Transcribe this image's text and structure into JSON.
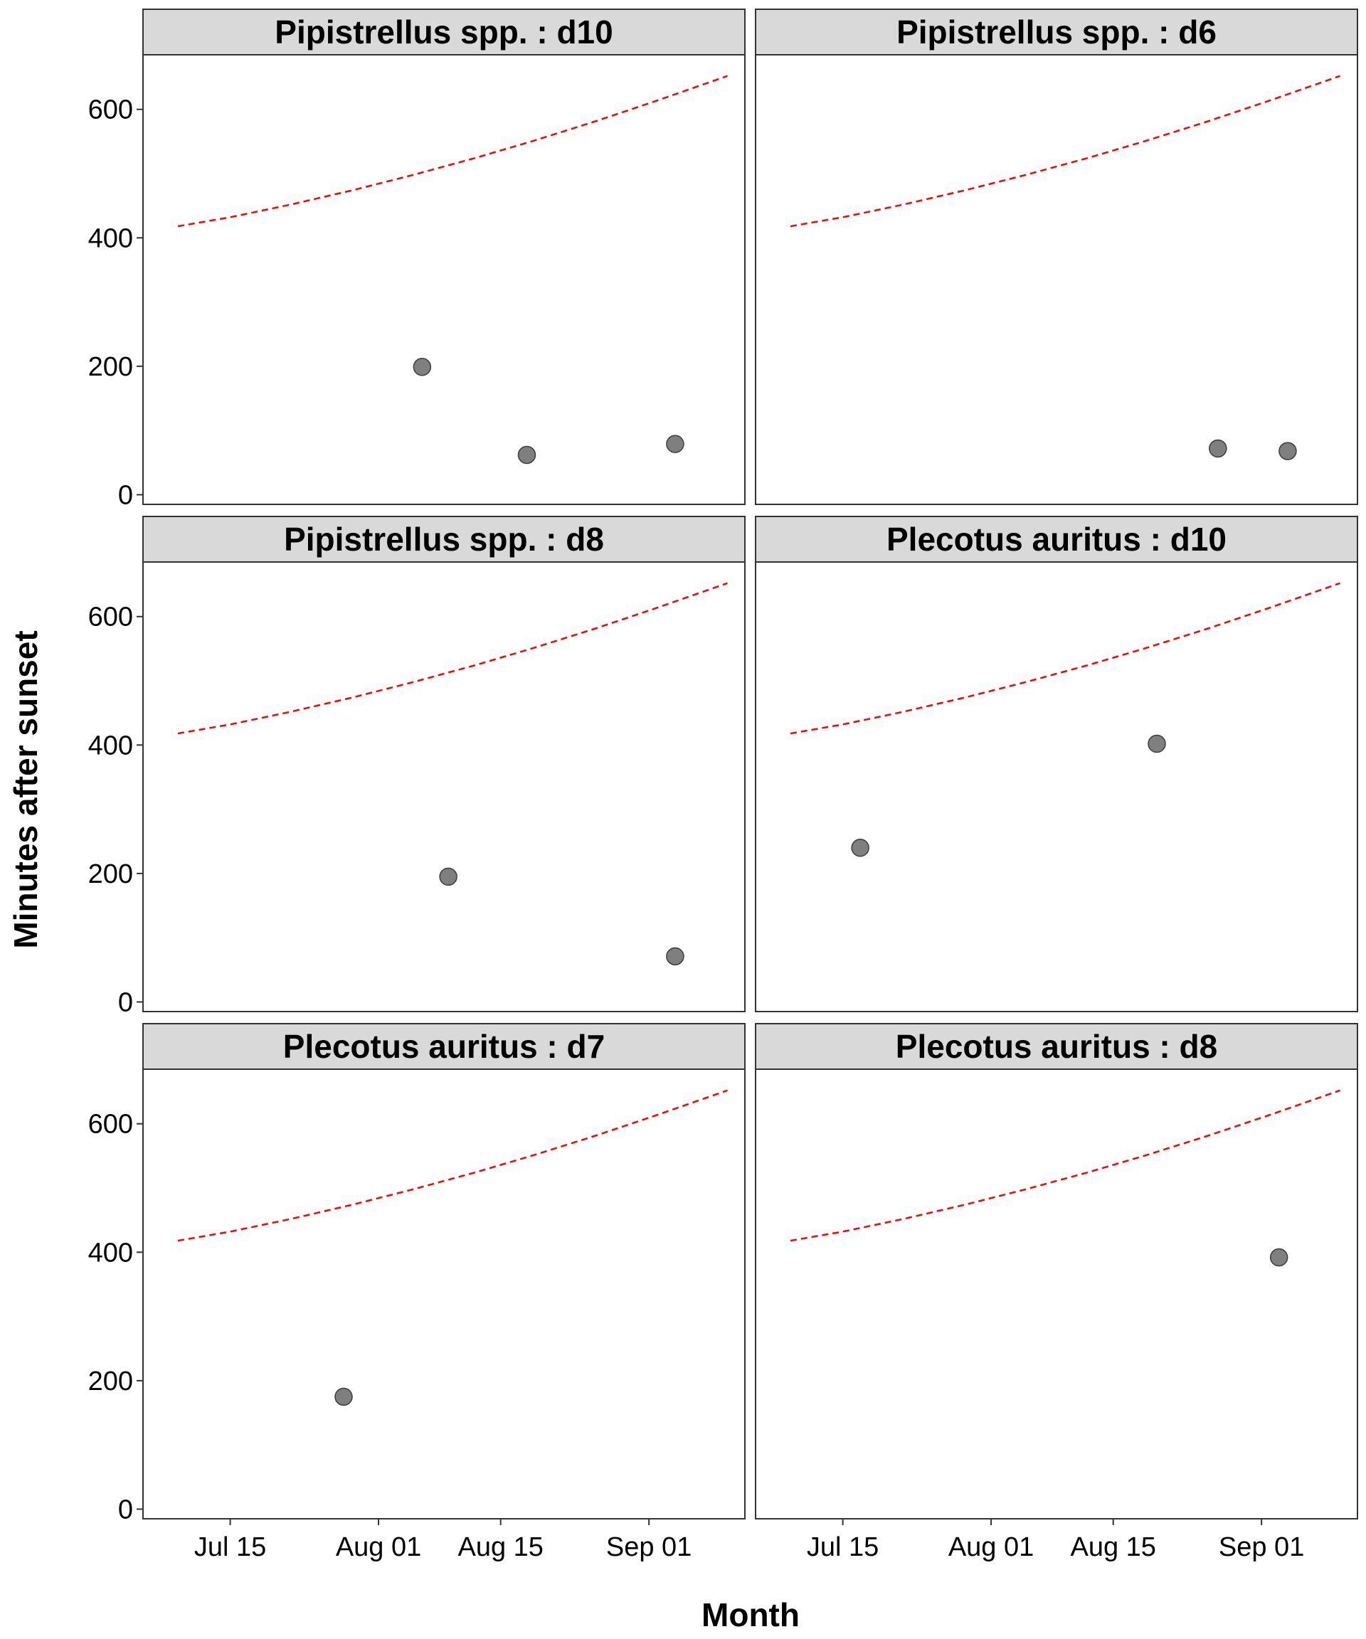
{
  "chart_data": {
    "type": "scatter",
    "xlabel": "Month",
    "ylabel": "Minutes after sunset",
    "x_ticks": [
      "Jul 15",
      "Aug 01",
      "Aug 15",
      "Sep 01"
    ],
    "y_ticks": [
      0,
      200,
      400,
      600
    ],
    "ylim": [
      -15,
      685
    ],
    "xlim": [
      "2020-07-05",
      "2020-09-12"
    ],
    "grid": false,
    "colors": {
      "points": "#7f7f7f",
      "reference_line": "#ff0000",
      "strip_background": "#d9d9d9"
    },
    "reference_line": [
      {
        "x": "2020-07-09",
        "y": 418
      },
      {
        "x": "2020-07-15",
        "y": 432
      },
      {
        "x": "2020-07-22",
        "y": 452
      },
      {
        "x": "2020-07-29",
        "y": 474
      },
      {
        "x": "2020-08-05",
        "y": 498
      },
      {
        "x": "2020-08-12",
        "y": 524
      },
      {
        "x": "2020-08-19",
        "y": 552
      },
      {
        "x": "2020-08-26",
        "y": 582
      },
      {
        "x": "2020-09-02",
        "y": 614
      },
      {
        "x": "2020-09-10",
        "y": 652
      }
    ],
    "panels": [
      {
        "title": "Pipistrellus spp. : d10",
        "points": [
          {
            "x": "2020-08-06",
            "y": 199
          },
          {
            "x": "2020-08-18",
            "y": 62
          },
          {
            "x": "2020-09-04",
            "y": 79
          }
        ]
      },
      {
        "title": "Pipistrellus spp. : d6",
        "points": [
          {
            "x": "2020-08-27",
            "y": 72
          },
          {
            "x": "2020-09-04",
            "y": 68
          }
        ]
      },
      {
        "title": "Pipistrellus spp. : d8",
        "points": [
          {
            "x": "2020-08-09",
            "y": 195
          },
          {
            "x": "2020-09-04",
            "y": 71
          }
        ]
      },
      {
        "title": "Plecotus auritus : d10",
        "points": [
          {
            "x": "2020-07-17",
            "y": 240
          },
          {
            "x": "2020-08-20",
            "y": 402
          }
        ]
      },
      {
        "title": "Plecotus auritus : d7",
        "points": [
          {
            "x": "2020-07-28",
            "y": 175
          }
        ]
      },
      {
        "title": "Plecotus auritus : d8",
        "points": [
          {
            "x": "2020-09-03",
            "y": 392
          }
        ]
      }
    ]
  }
}
